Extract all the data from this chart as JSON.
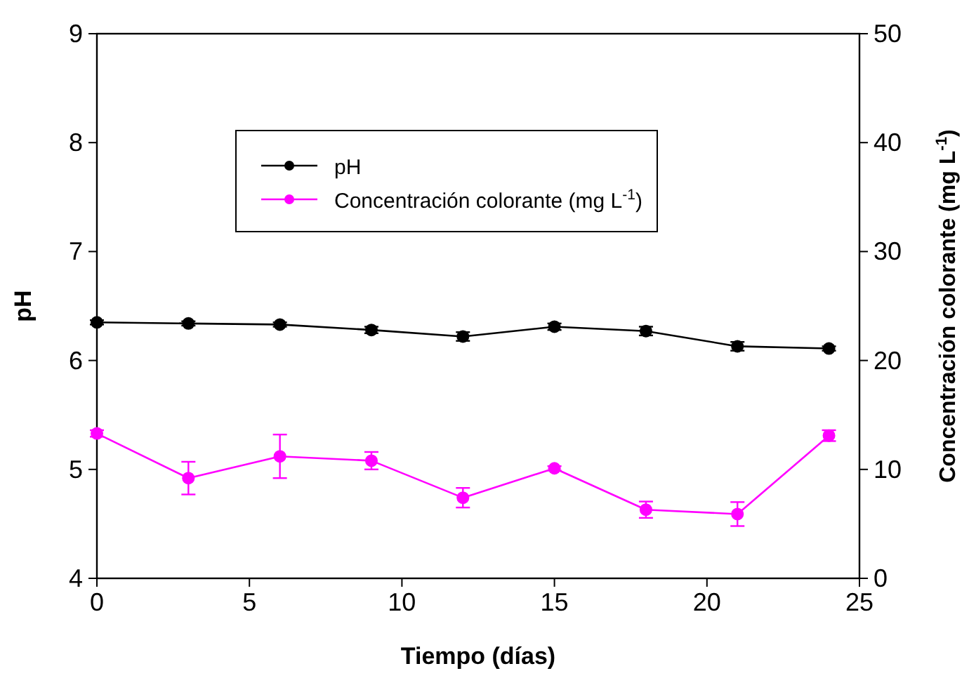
{
  "chart_data": {
    "type": "line",
    "xlabel": "Tiempo (días)",
    "ylabel": "pH",
    "y2label": "Concentración colorante (mg L$^{-1}$)",
    "x": [
      0,
      3,
      6,
      9,
      12,
      15,
      18,
      21,
      24
    ],
    "series": [
      {
        "name": "pH",
        "color": "#000000",
        "values": [
          6.35,
          6.34,
          6.33,
          6.28,
          6.22,
          6.31,
          6.27,
          6.13,
          6.11
        ],
        "errors": [
          0.02,
          0.02,
          0.02,
          0.03,
          0.04,
          0.03,
          0.04,
          0.04,
          0.02
        ]
      },
      {
        "name": "Concentración colorante (mg L$^{-1}$)",
        "color": "#ff00ff",
        "axis": "y2",
        "values": [
          13.3,
          9.2,
          11.2,
          10.8,
          7.4,
          10.1,
          6.3,
          5.9,
          13.1
        ],
        "errors": [
          0.3,
          1.5,
          2.0,
          0.8,
          0.9,
          0.2,
          0.75,
          1.1,
          0.5
        ]
      }
    ],
    "xlim": [
      0,
      25
    ],
    "xticks": [
      0,
      5,
      10,
      15,
      20,
      25
    ],
    "ylim": [
      4,
      9
    ],
    "yticks": [
      4,
      5,
      6,
      7,
      8,
      9
    ],
    "y2lim": [
      0,
      50
    ],
    "y2ticks": [
      0,
      10,
      20,
      30,
      40,
      50
    ],
    "marker": "circle",
    "legend": "top left",
    "grid": false
  }
}
